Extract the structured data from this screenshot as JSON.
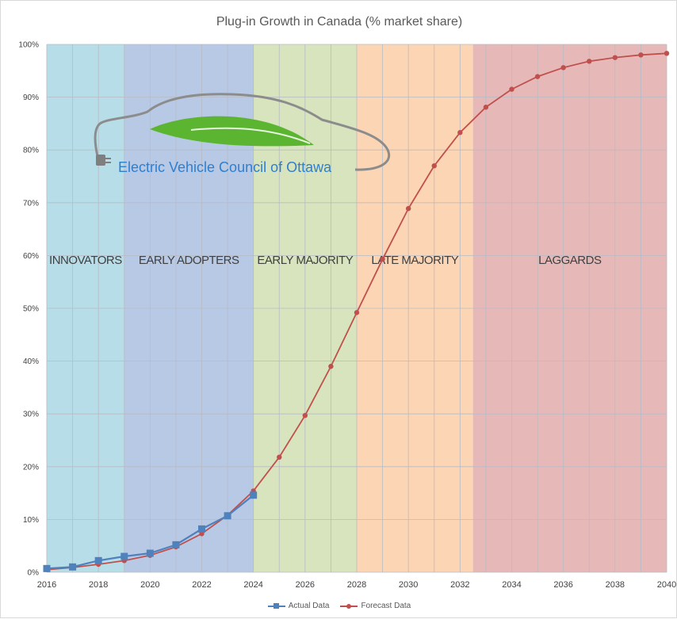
{
  "title": "Plug-in Growth in Canada (% market share)",
  "colors": {
    "actual": "#4f81bd",
    "forecast": "#c0504d",
    "grid": "#b7bcc4",
    "phase_innovators": "#b7dde8",
    "phase_early_adopters": "#b8c9e5",
    "phase_early_majority": "#d7e4bd",
    "phase_late_majority": "#fcd5b4",
    "phase_laggards": "#e6b9b8",
    "logo_leaf": "#5cb531",
    "logo_cord": "#8c8c8c",
    "logo_text": "#2f7fcf"
  },
  "logo": {
    "text": "Electric Vehicle Council of Ottawa",
    "icon": "plug-car-leaf-logo"
  },
  "legend": {
    "actual_label": "Actual Data",
    "forecast_label": "Forecast Data"
  },
  "chart_data": {
    "type": "line",
    "title": "Plug-in Growth in Canada (% market share)",
    "xlabel": "",
    "ylabel": "",
    "xlim": [
      2016,
      2040
    ],
    "ylim": [
      0,
      100
    ],
    "x_ticks": [
      2016,
      2018,
      2020,
      2022,
      2024,
      2026,
      2028,
      2030,
      2032,
      2034,
      2036,
      2038,
      2040
    ],
    "y_ticks": [
      0,
      10,
      20,
      30,
      40,
      50,
      60,
      70,
      80,
      90,
      100
    ],
    "y_tick_suffix": "%",
    "grid": "both",
    "legend_position": "bottom",
    "phases": [
      {
        "label": "INNOVATORS",
        "start": 2016,
        "end": 2019
      },
      {
        "label": "EARLY ADOPTERS",
        "start": 2019,
        "end": 2024
      },
      {
        "label": "EARLY MAJORITY",
        "start": 2024,
        "end": 2028
      },
      {
        "label": "LATE MAJORITY",
        "start": 2028,
        "end": 2032.5
      },
      {
        "label": "LAGGARDS",
        "start": 2032.5,
        "end": 2040
      }
    ],
    "series": [
      {
        "name": "Actual Data",
        "marker": "square",
        "x": [
          2016,
          2017,
          2018,
          2019,
          2020,
          2021,
          2022,
          2023,
          2024
        ],
        "values": [
          0.7,
          1.0,
          2.2,
          3.0,
          3.6,
          5.2,
          8.2,
          10.7,
          14.6
        ]
      },
      {
        "name": "Forecast Data",
        "marker": "circle",
        "x": [
          2016,
          2017,
          2018,
          2019,
          2020,
          2021,
          2022,
          2023,
          2024,
          2025,
          2026,
          2027,
          2028,
          2029,
          2030,
          2031,
          2032,
          2033,
          2034,
          2035,
          2036,
          2037,
          2038,
          2039,
          2040
        ],
        "values": [
          0.5,
          0.9,
          1.5,
          2.2,
          3.2,
          4.8,
          7.3,
          10.8,
          15.4,
          21.8,
          29.7,
          39.0,
          49.2,
          59.3,
          68.9,
          77.0,
          83.3,
          88.1,
          91.5,
          93.9,
          95.6,
          96.8,
          97.5,
          98.0,
          98.3
        ]
      }
    ]
  }
}
